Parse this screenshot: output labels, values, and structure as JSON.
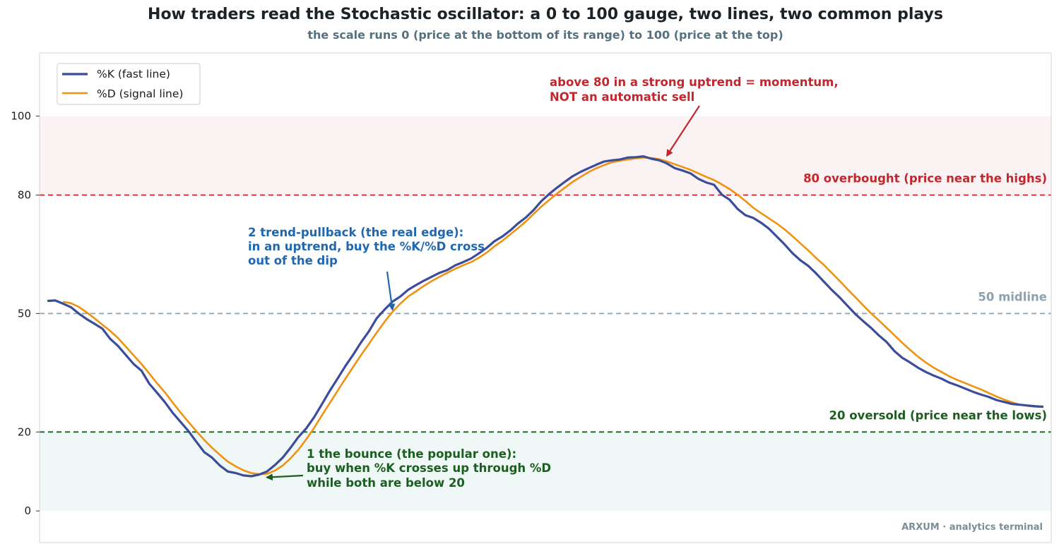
{
  "header": {
    "title": "How traders read the Stochastic oscillator: a 0 to 100 gauge, two lines, two common plays",
    "subtitle": "the scale runs 0 (price at the bottom of its range) to 100 (price at the top)"
  },
  "footer": {
    "brand": "ARXUM · analytics terminal"
  },
  "colors": {
    "k_line": "#3b4c9a",
    "d_line": "#f0920f",
    "overbought": "#c2272d",
    "oversold": "#1c5e20",
    "midline": "#8da2ae",
    "pullback": "#1f68b0"
  },
  "levels": {
    "overbought": {
      "value": 80,
      "label": "80  overbought (price near the highs)"
    },
    "midline": {
      "value": 50,
      "label": "50  midline"
    },
    "oversold": {
      "value": 20,
      "label": "20  oversold (price near the lows)"
    }
  },
  "annotations": {
    "bounce": {
      "lines": [
        "1  the bounce (the popular one):",
        "buy when %K crosses up through %D",
        "while both are below 20"
      ],
      "target": {
        "x": 28,
        "y": 8.5
      }
    },
    "pullback": {
      "lines": [
        "2  trend-pullback (the real edge):",
        "in an uptrend, buy the %K/%D cross",
        "out of the dip"
      ],
      "target": {
        "x": 44,
        "y": 51
      }
    },
    "momentum": {
      "lines": [
        "above 80 in a strong uptrend = momentum,",
        "NOT an automatic sell"
      ],
      "target": {
        "x": 79,
        "y": 90
      }
    }
  },
  "chart_data": {
    "type": "line",
    "xlim": [
      -1,
      128
    ],
    "ylim": [
      -8,
      116
    ],
    "yticks": [
      0,
      20,
      50,
      80,
      100
    ],
    "grid": false,
    "legend": "top-left",
    "x": [
      0,
      1,
      2,
      3,
      4,
      5,
      6,
      7,
      8,
      9,
      10,
      11,
      12,
      13,
      14,
      15,
      16,
      17,
      18,
      19,
      20,
      21,
      22,
      23,
      24,
      25,
      26,
      27,
      28,
      29,
      30,
      31,
      32,
      33,
      34,
      35,
      36,
      37,
      38,
      39,
      40,
      41,
      42,
      43,
      44,
      45,
      46,
      47,
      48,
      49,
      50,
      51,
      52,
      53,
      54,
      55,
      56,
      57,
      58,
      59,
      60,
      61,
      62,
      63,
      64,
      65,
      66,
      67,
      68,
      69,
      70,
      71,
      72,
      73,
      74,
      75,
      76,
      77,
      78,
      79,
      80,
      81,
      82,
      83,
      84,
      85,
      86,
      87,
      88,
      89,
      90,
      91,
      92,
      93,
      94,
      95,
      96,
      97,
      98,
      99,
      100,
      101,
      102,
      103,
      104,
      105,
      106,
      107,
      108,
      109,
      110,
      111,
      112,
      113,
      114,
      115,
      116,
      117,
      118,
      119,
      120,
      121,
      122,
      123,
      124,
      125,
      126,
      127
    ],
    "series": [
      {
        "name": "%K (fast line)",
        "values": [
          53.2,
          53.3,
          52.5,
          51.6,
          50.0,
          48.6,
          47.4,
          46.2,
          43.6,
          41.8,
          39.5,
          37.2,
          35.5,
          32.2,
          29.9,
          27.5,
          24.8,
          22.5,
          20.2,
          17.5,
          14.9,
          13.5,
          11.5,
          10.0,
          9.6,
          9.0,
          8.8,
          9.2,
          10.0,
          11.6,
          13.5,
          16.0,
          18.7,
          20.9,
          23.7,
          27.0,
          30.4,
          33.5,
          36.7,
          39.6,
          42.7,
          45.5,
          48.8,
          51.0,
          53.0,
          54.3,
          56.0,
          57.2,
          58.3,
          59.3,
          60.3,
          61.0,
          62.2,
          63.0,
          63.9,
          65.2,
          66.6,
          68.3,
          69.5,
          71.0,
          72.8,
          74.3,
          76.2,
          78.5,
          80.3,
          81.9,
          83.4,
          84.8,
          85.9,
          86.8,
          87.7,
          88.5,
          88.8,
          89.0,
          89.5,
          89.6,
          89.8,
          89.2,
          88.8,
          88.0,
          86.8,
          86.2,
          85.5,
          84.1,
          83.2,
          82.6,
          80.1,
          78.8,
          76.5,
          74.9,
          74.2,
          73.0,
          71.5,
          69.5,
          67.5,
          65.3,
          63.5,
          62.1,
          60.2,
          58.1,
          56.0,
          54.1,
          52.0,
          49.9,
          48.1,
          46.4,
          44.5,
          42.8,
          40.5,
          38.8,
          37.6,
          36.3,
          35.2,
          34.3,
          33.5,
          32.5,
          31.8,
          31.0,
          30.2,
          29.5,
          28.9,
          28.1,
          27.6,
          27.1,
          26.9,
          26.7,
          26.5,
          26.4
        ]
      },
      {
        "name": "%D (signal line)",
        "values": [
          null,
          null,
          53.0,
          52.6,
          51.7,
          50.3,
          48.8,
          47.2,
          45.6,
          43.8,
          41.6,
          39.4,
          37.2,
          34.8,
          32.3,
          30.0,
          27.4,
          24.9,
          22.5,
          20.2,
          18.0,
          16.0,
          14.2,
          12.5,
          11.3,
          10.3,
          9.6,
          9.3,
          9.4,
          10.2,
          11.5,
          13.3,
          15.5,
          18.1,
          21.0,
          24.2,
          27.3,
          30.4,
          33.5,
          36.5,
          39.5,
          42.3,
          45.2,
          47.9,
          50.4,
          52.5,
          54.3,
          55.6,
          57.0,
          58.2,
          59.3,
          60.3,
          61.3,
          62.2,
          63.0,
          64.1,
          65.4,
          67.0,
          68.4,
          70.0,
          71.6,
          73.3,
          75.2,
          77.1,
          78.8,
          80.4,
          81.9,
          83.4,
          84.6,
          85.8,
          86.8,
          87.6,
          88.3,
          88.7,
          89.0,
          89.3,
          89.5,
          89.4,
          89.1,
          88.5,
          87.8,
          87.1,
          86.4,
          85.5,
          84.6,
          83.8,
          82.7,
          81.5,
          80.1,
          78.5,
          76.8,
          75.4,
          74.1,
          72.8,
          71.3,
          69.6,
          67.8,
          66.0,
          64.1,
          62.3,
          60.3,
          58.3,
          56.2,
          54.2,
          52.1,
          50.1,
          48.3,
          46.4,
          44.5,
          42.6,
          40.8,
          39.1,
          37.6,
          36.3,
          35.2,
          34.1,
          33.2,
          32.4,
          31.6,
          30.8,
          29.9,
          29.0,
          28.2,
          27.5,
          26.9,
          26.6,
          26.4,
          26.3
        ]
      }
    ]
  }
}
